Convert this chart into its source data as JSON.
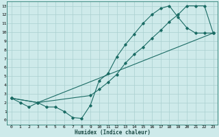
{
  "title": "",
  "xlabel": "Humidex (Indice chaleur)",
  "bg_color": "#ceeaea",
  "grid_color": "#aacfcf",
  "line_color": "#1a6b64",
  "xlim": [
    -0.5,
    23.5
  ],
  "ylim": [
    -0.5,
    13.5
  ],
  "xticks": [
    0,
    1,
    2,
    3,
    4,
    5,
    6,
    7,
    8,
    9,
    10,
    11,
    12,
    13,
    14,
    15,
    16,
    17,
    18,
    19,
    20,
    21,
    22,
    23
  ],
  "yticks": [
    0,
    1,
    2,
    3,
    4,
    5,
    6,
    7,
    8,
    9,
    10,
    11,
    12,
    13
  ],
  "line1_x": [
    0,
    1,
    2,
    3,
    4,
    5,
    6,
    7,
    8,
    9,
    10,
    11,
    12,
    13,
    14,
    15,
    16,
    17,
    18,
    19,
    20,
    21,
    22,
    23
  ],
  "line1_y": [
    2.5,
    2.0,
    1.5,
    2.0,
    1.5,
    1.5,
    1.0,
    0.3,
    0.2,
    1.7,
    4.5,
    5.3,
    7.2,
    8.6,
    9.8,
    11.0,
    12.0,
    12.7,
    13.0,
    11.7,
    10.5,
    9.9,
    9.9,
    9.9
  ],
  "line2_x": [
    0,
    3,
    9,
    10,
    11,
    12,
    13,
    14,
    15,
    16,
    17,
    18,
    19,
    20,
    21,
    22,
    23
  ],
  "line2_y": [
    2.5,
    2.0,
    2.8,
    3.5,
    4.3,
    5.2,
    6.5,
    7.5,
    8.3,
    9.3,
    10.2,
    11.2,
    12.0,
    13.0,
    13.0,
    13.0,
    9.9
  ],
  "line3_x": [
    0,
    3,
    23
  ],
  "line3_y": [
    2.5,
    2.0,
    9.9
  ]
}
